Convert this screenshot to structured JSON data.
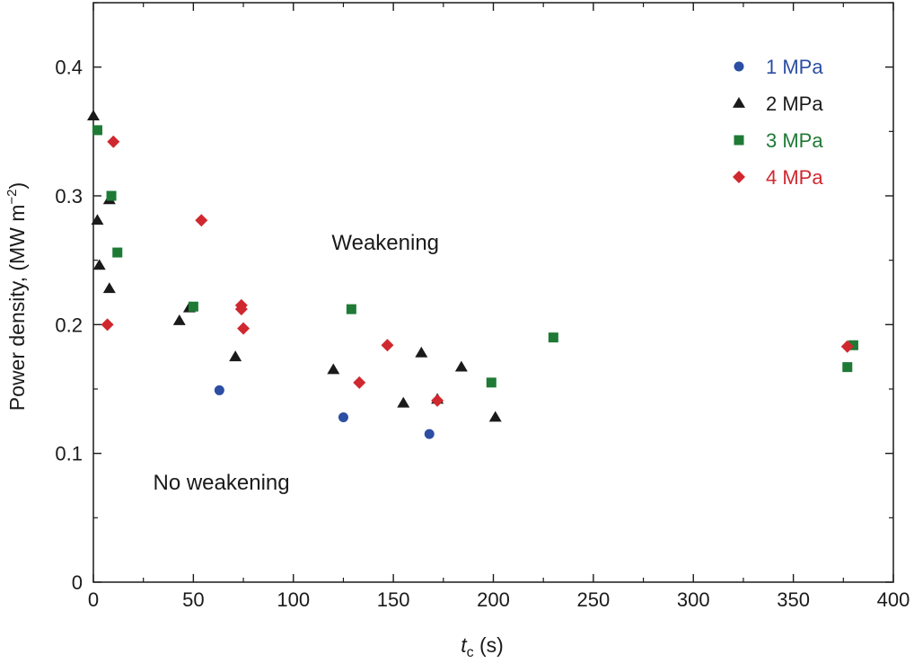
{
  "chart_data": {
    "type": "scatter",
    "xlabel": {
      "main": "t",
      "sub": "c",
      "rest": " (s)"
    },
    "ylabel": {
      "main": "Power density, (MW m",
      "sup": "−2",
      "end": ")"
    },
    "xlim": [
      0,
      400
    ],
    "ylim": [
      0,
      0.45
    ],
    "x_ticks": [
      0,
      50,
      100,
      150,
      200,
      250,
      300,
      350,
      400
    ],
    "x_tick_labels": [
      "0",
      "50",
      "100",
      "150",
      "200",
      "250",
      "300",
      "350",
      "400"
    ],
    "y_ticks": [
      0,
      0.1,
      0.2,
      0.3,
      0.4
    ],
    "y_tick_labels": [
      "0",
      "0.1",
      "0.2",
      "0.3",
      "0.4"
    ],
    "grid": false,
    "legend_position": "top-right",
    "annotations": [
      {
        "text": "Weakening",
        "x": 146,
        "y": 0.258
      },
      {
        "text": "No weakening",
        "x": 64,
        "y": 0.072
      }
    ],
    "series": [
      {
        "name": "1 MPa",
        "marker": "circle",
        "color": "#2c4ea3",
        "points": [
          [
            63,
            0.149
          ],
          [
            125,
            0.128
          ],
          [
            168,
            0.115
          ]
        ]
      },
      {
        "name": "2 MPa",
        "marker": "triangle",
        "color": "#1a1a1a",
        "points": [
          [
            0,
            0.362
          ],
          [
            2,
            0.281
          ],
          [
            3,
            0.246
          ],
          [
            8,
            0.297
          ],
          [
            8,
            0.228
          ],
          [
            43,
            0.203
          ],
          [
            48,
            0.213
          ],
          [
            71,
            0.175
          ],
          [
            120,
            0.165
          ],
          [
            155,
            0.139
          ],
          [
            164,
            0.178
          ],
          [
            172,
            0.142
          ],
          [
            184,
            0.167
          ],
          [
            201,
            0.128
          ]
        ]
      },
      {
        "name": "3 MPa",
        "marker": "square",
        "color": "#1e7a35",
        "points": [
          [
            2,
            0.351
          ],
          [
            9,
            0.3
          ],
          [
            12,
            0.256
          ],
          [
            50,
            0.214
          ],
          [
            129,
            0.212
          ],
          [
            199,
            0.155
          ],
          [
            230,
            0.19
          ],
          [
            377,
            0.167
          ],
          [
            380,
            0.184
          ]
        ]
      },
      {
        "name": "4 MPa",
        "marker": "diamond",
        "color": "#d0282f",
        "points": [
          [
            10,
            0.342
          ],
          [
            7,
            0.2
          ],
          [
            54,
            0.281
          ],
          [
            74,
            0.215
          ],
          [
            74,
            0.212
          ],
          [
            75,
            0.197
          ],
          [
            133,
            0.155
          ],
          [
            147,
            0.184
          ],
          [
            172,
            0.141
          ],
          [
            377,
            0.183
          ]
        ]
      }
    ]
  }
}
